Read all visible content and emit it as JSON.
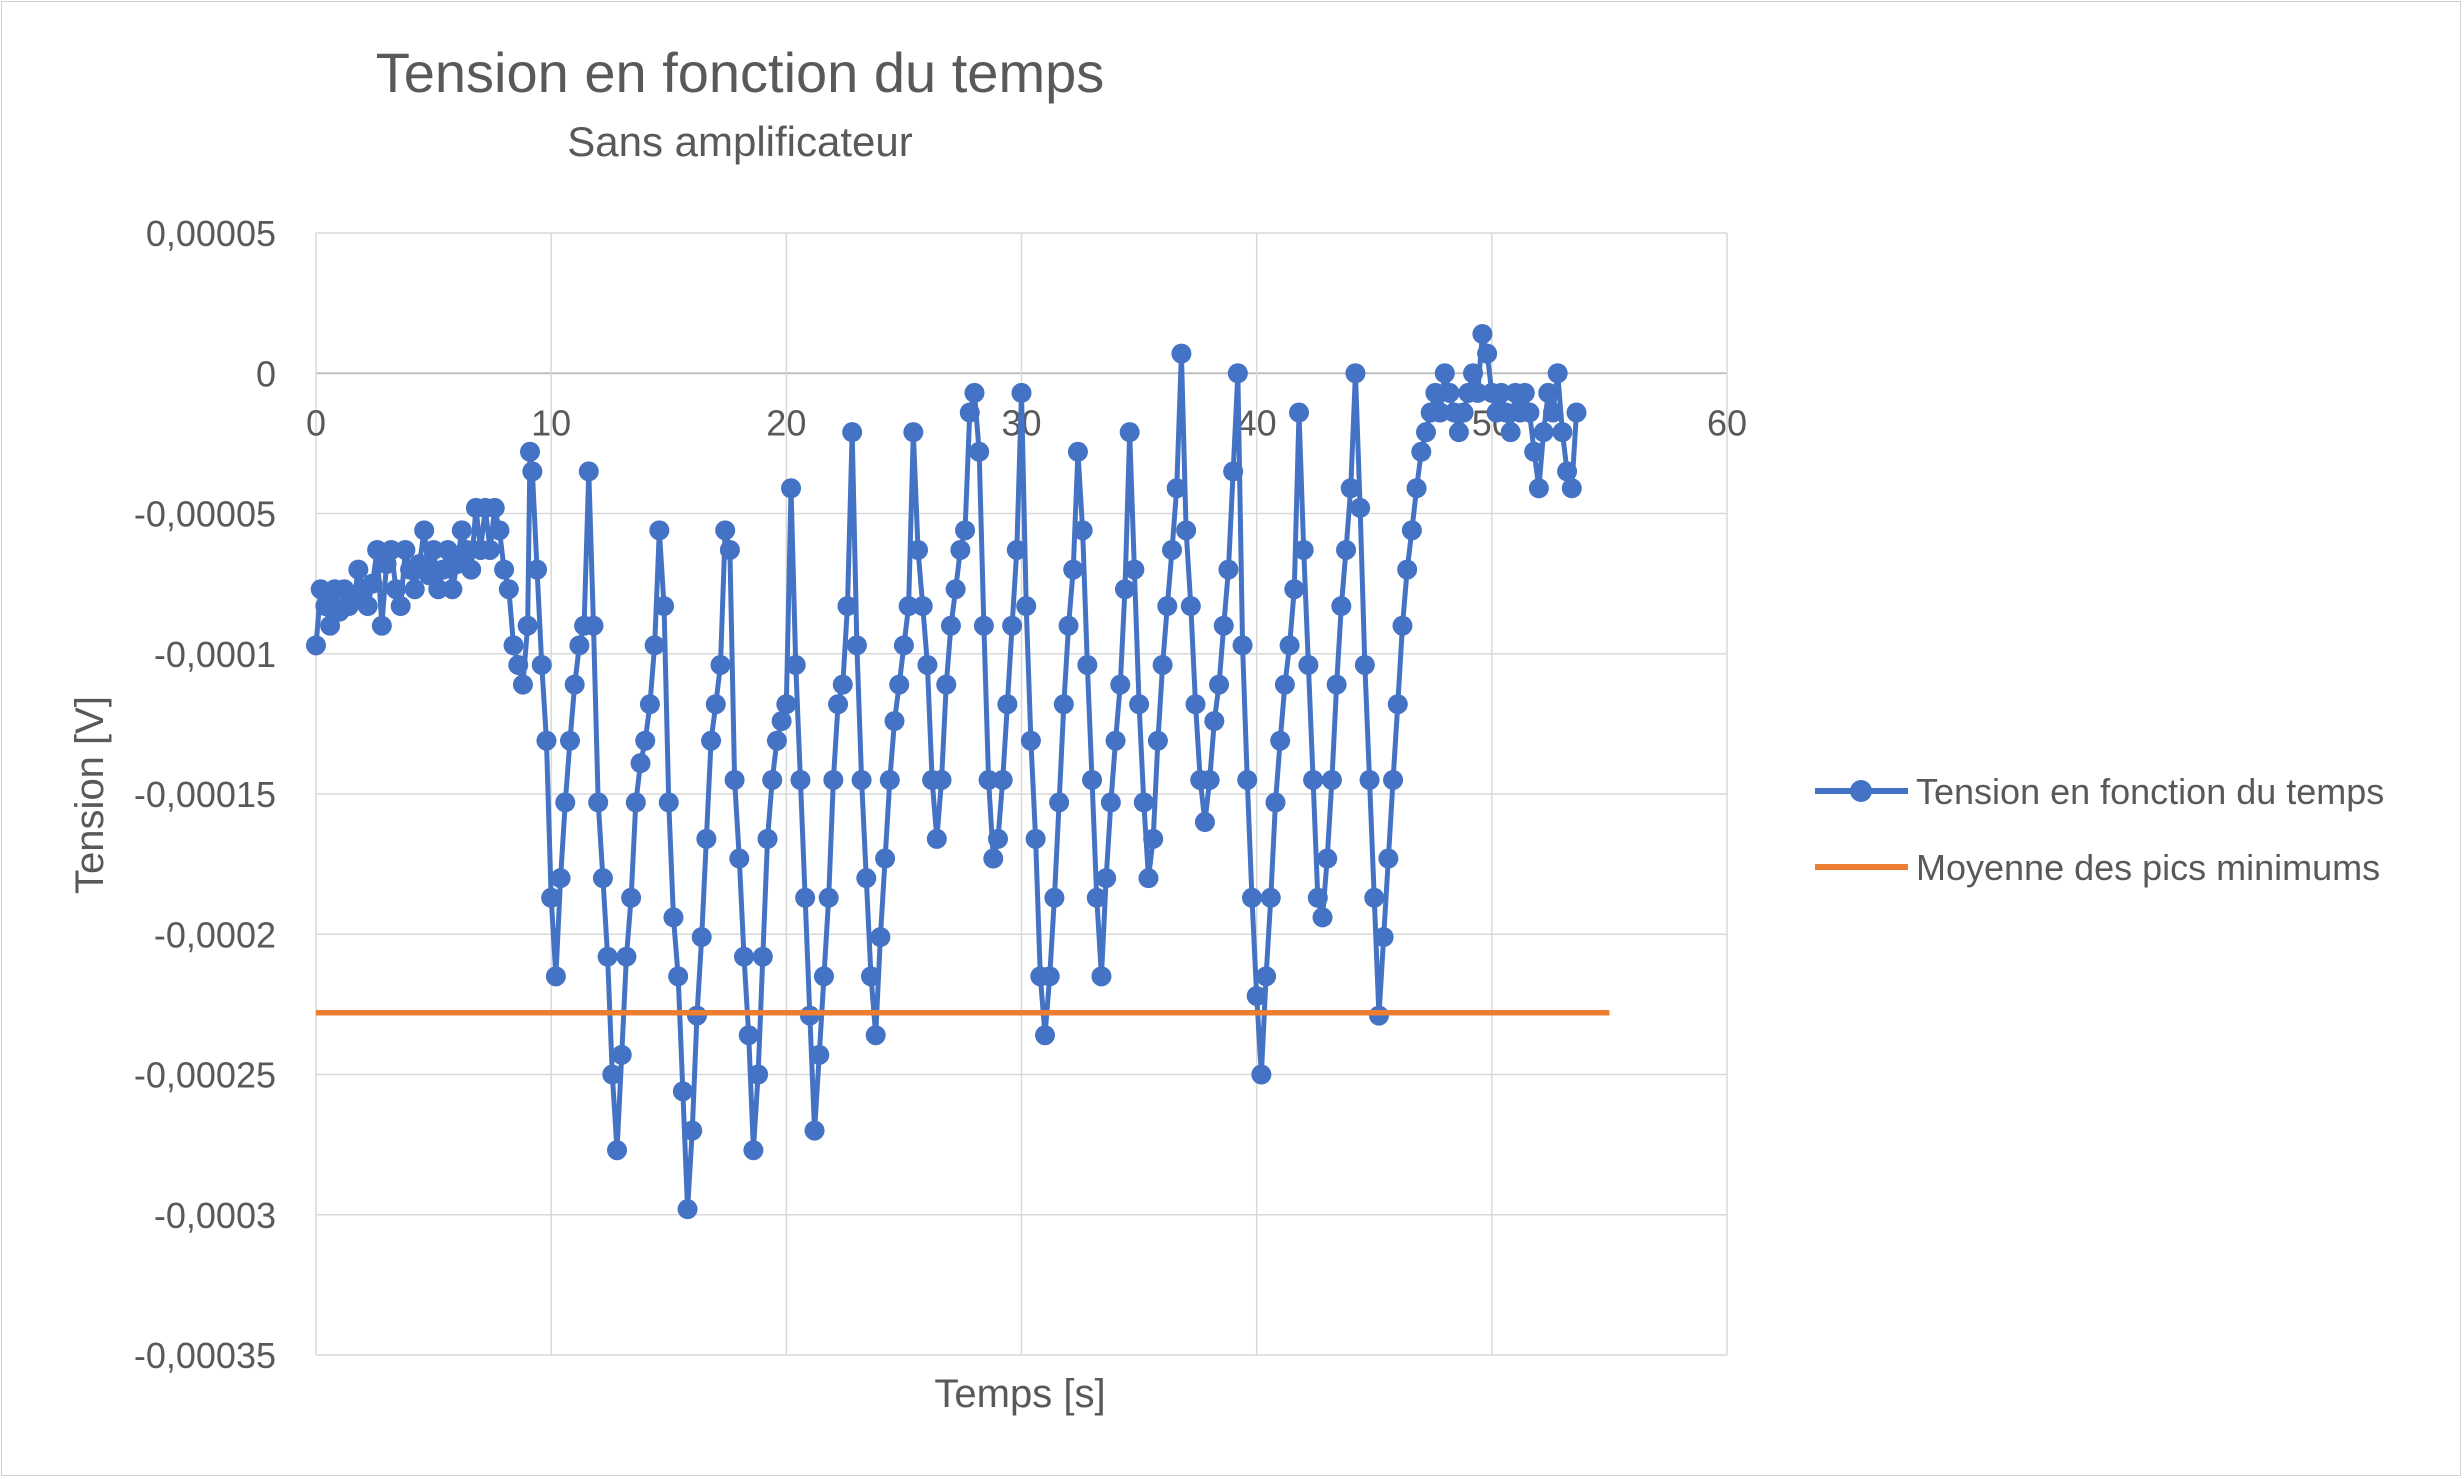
{
  "chart_data": {
    "type": "line",
    "title": "Tension en fonction du temps",
    "subtitle": "Sans amplificateur",
    "xlabel": "Temps [s]",
    "ylabel": "Tension [V]",
    "xlim": [
      0,
      60
    ],
    "ylim": [
      -0.00035,
      5e-05
    ],
    "x_ticks": [
      0,
      10,
      20,
      30,
      40,
      50,
      60
    ],
    "x_tick_labels": [
      "0",
      "10",
      "20",
      "30",
      "40",
      "50",
      "60"
    ],
    "y_ticks": [
      5e-05,
      0,
      -5e-05,
      -0.0001,
      -0.00015,
      -0.0002,
      -0.00025,
      -0.0003,
      -0.00035
    ],
    "y_tick_labels": [
      "0,00005",
      "0",
      "-0,00005",
      "-0,0001",
      "-0,00015",
      "-0,0002",
      "-0,00025",
      "-0,0003",
      "-0,00035"
    ],
    "grid": true,
    "legend_position": "right",
    "series": [
      {
        "name": "Tension en fonction du temps",
        "color": "#4472C4",
        "marker": "circle",
        "points": [
          [
            0,
            -9.7e-05
          ],
          [
            0.2,
            -7.7e-05
          ],
          [
            0.4,
            -8.3e-05
          ],
          [
            0.6,
            -9e-05
          ],
          [
            0.8,
            -7.7e-05
          ],
          [
            1.0,
            -8.5e-05
          ],
          [
            1.2,
            -7.7e-05
          ],
          [
            1.4,
            -8.3e-05
          ],
          [
            1.6,
            -8.1e-05
          ],
          [
            1.8,
            -7e-05
          ],
          [
            2.0,
            -7.7e-05
          ],
          [
            2.2,
            -8.3e-05
          ],
          [
            2.4,
            -7.5e-05
          ],
          [
            2.6,
            -6.3e-05
          ],
          [
            2.8,
            -9e-05
          ],
          [
            3.0,
            -6.8e-05
          ],
          [
            3.2,
            -6.3e-05
          ],
          [
            3.4,
            -7.7e-05
          ],
          [
            3.6,
            -8.3e-05
          ],
          [
            3.8,
            -6.3e-05
          ],
          [
            4.0,
            -7e-05
          ],
          [
            4.2,
            -7.7e-05
          ],
          [
            4.4,
            -6.8e-05
          ],
          [
            4.6,
            -5.6e-05
          ],
          [
            4.8,
            -7.2e-05
          ],
          [
            5.0,
            -6.3e-05
          ],
          [
            5.2,
            -7.7e-05
          ],
          [
            5.4,
            -7e-05
          ],
          [
            5.6,
            -6.3e-05
          ],
          [
            5.8,
            -7.7e-05
          ],
          [
            6.0,
            -6.8e-05
          ],
          [
            6.2,
            -5.6e-05
          ],
          [
            6.4,
            -6.3e-05
          ],
          [
            6.6,
            -7e-05
          ],
          [
            6.8,
            -4.8e-05
          ],
          [
            7.0,
            -6.3e-05
          ],
          [
            7.2,
            -4.8e-05
          ],
          [
            7.4,
            -6.3e-05
          ],
          [
            7.6,
            -4.8e-05
          ],
          [
            7.8,
            -5.6e-05
          ],
          [
            8.0,
            -7e-05
          ],
          [
            8.2,
            -7.7e-05
          ],
          [
            8.4,
            -9.7e-05
          ],
          [
            8.6,
            -0.000104
          ],
          [
            8.8,
            -0.000111
          ],
          [
            9.0,
            -9e-05
          ],
          [
            9.1,
            -2.8e-05
          ],
          [
            9.2,
            -3.5e-05
          ],
          [
            9.4,
            -7e-05
          ],
          [
            9.6,
            -0.000104
          ],
          [
            9.8,
            -0.000131
          ],
          [
            10.0,
            -0.000187
          ],
          [
            10.2,
            -0.000215
          ],
          [
            10.4,
            -0.00018
          ],
          [
            10.6,
            -0.000153
          ],
          [
            10.8,
            -0.000131
          ],
          [
            11.0,
            -0.000111
          ],
          [
            11.2,
            -9.7e-05
          ],
          [
            11.4,
            -9e-05
          ],
          [
            11.6,
            -3.5e-05
          ],
          [
            11.8,
            -9e-05
          ],
          [
            12.0,
            -0.000153
          ],
          [
            12.2,
            -0.00018
          ],
          [
            12.4,
            -0.000208
          ],
          [
            12.6,
            -0.00025
          ],
          [
            12.8,
            -0.000277
          ],
          [
            13.0,
            -0.000243
          ],
          [
            13.2,
            -0.000208
          ],
          [
            13.4,
            -0.000187
          ],
          [
            13.6,
            -0.000153
          ],
          [
            13.8,
            -0.000139
          ],
          [
            14.0,
            -0.000131
          ],
          [
            14.2,
            -0.000118
          ],
          [
            14.4,
            -9.7e-05
          ],
          [
            14.6,
            -5.6e-05
          ],
          [
            14.8,
            -8.3e-05
          ],
          [
            15.0,
            -0.000153
          ],
          [
            15.2,
            -0.000194
          ],
          [
            15.4,
            -0.000215
          ],
          [
            15.6,
            -0.000256
          ],
          [
            15.8,
            -0.000298
          ],
          [
            16.0,
            -0.00027
          ],
          [
            16.2,
            -0.000229
          ],
          [
            16.4,
            -0.000201
          ],
          [
            16.6,
            -0.000166
          ],
          [
            16.8,
            -0.000131
          ],
          [
            17.0,
            -0.000118
          ],
          [
            17.2,
            -0.000104
          ],
          [
            17.4,
            -5.6e-05
          ],
          [
            17.6,
            -6.3e-05
          ],
          [
            17.8,
            -0.000145
          ],
          [
            18.0,
            -0.000173
          ],
          [
            18.2,
            -0.000208
          ],
          [
            18.4,
            -0.000236
          ],
          [
            18.6,
            -0.000277
          ],
          [
            18.8,
            -0.00025
          ],
          [
            19.0,
            -0.000208
          ],
          [
            19.2,
            -0.000166
          ],
          [
            19.4,
            -0.000145
          ],
          [
            19.6,
            -0.000131
          ],
          [
            19.8,
            -0.000124
          ],
          [
            20.0,
            -0.000118
          ],
          [
            20.2,
            -4.1e-05
          ],
          [
            20.4,
            -0.000104
          ],
          [
            20.6,
            -0.000145
          ],
          [
            20.8,
            -0.000187
          ],
          [
            21.0,
            -0.000229
          ],
          [
            21.2,
            -0.00027
          ],
          [
            21.4,
            -0.000243
          ],
          [
            21.6,
            -0.000215
          ],
          [
            21.8,
            -0.000187
          ],
          [
            22.0,
            -0.000145
          ],
          [
            22.2,
            -0.000118
          ],
          [
            22.4,
            -0.000111
          ],
          [
            22.6,
            -8.3e-05
          ],
          [
            22.8,
            -2.1e-05
          ],
          [
            23.0,
            -9.7e-05
          ],
          [
            23.2,
            -0.000145
          ],
          [
            23.4,
            -0.00018
          ],
          [
            23.6,
            -0.000215
          ],
          [
            23.8,
            -0.000236
          ],
          [
            24.0,
            -0.000201
          ],
          [
            24.2,
            -0.000173
          ],
          [
            24.4,
            -0.000145
          ],
          [
            24.6,
            -0.000124
          ],
          [
            24.8,
            -0.000111
          ],
          [
            25.0,
            -9.7e-05
          ],
          [
            25.2,
            -8.3e-05
          ],
          [
            25.4,
            -2.1e-05
          ],
          [
            25.6,
            -6.3e-05
          ],
          [
            25.8,
            -8.3e-05
          ],
          [
            26.0,
            -0.000104
          ],
          [
            26.2,
            -0.000145
          ],
          [
            26.4,
            -0.000166
          ],
          [
            26.6,
            -0.000145
          ],
          [
            26.8,
            -0.000111
          ],
          [
            27.0,
            -9e-05
          ],
          [
            27.2,
            -7.7e-05
          ],
          [
            27.4,
            -6.3e-05
          ],
          [
            27.6,
            -5.6e-05
          ],
          [
            27.8,
            -1.4e-05
          ],
          [
            28.0,
            -7e-06
          ],
          [
            28.2,
            -2.8e-05
          ],
          [
            28.4,
            -9e-05
          ],
          [
            28.6,
            -0.000145
          ],
          [
            28.8,
            -0.000173
          ],
          [
            29.0,
            -0.000166
          ],
          [
            29.2,
            -0.000145
          ],
          [
            29.4,
            -0.000118
          ],
          [
            29.6,
            -9e-05
          ],
          [
            29.8,
            -6.3e-05
          ],
          [
            30.0,
            -7e-06
          ],
          [
            30.2,
            -8.3e-05
          ],
          [
            30.4,
            -0.000131
          ],
          [
            30.6,
            -0.000166
          ],
          [
            30.8,
            -0.000215
          ],
          [
            31.0,
            -0.000236
          ],
          [
            31.2,
            -0.000215
          ],
          [
            31.4,
            -0.000187
          ],
          [
            31.6,
            -0.000153
          ],
          [
            31.8,
            -0.000118
          ],
          [
            32.0,
            -9e-05
          ],
          [
            32.2,
            -7e-05
          ],
          [
            32.4,
            -2.8e-05
          ],
          [
            32.6,
            -5.6e-05
          ],
          [
            32.8,
            -0.000104
          ],
          [
            33.0,
            -0.000145
          ],
          [
            33.2,
            -0.000187
          ],
          [
            33.4,
            -0.000215
          ],
          [
            33.6,
            -0.00018
          ],
          [
            33.8,
            -0.000153
          ],
          [
            34.0,
            -0.000131
          ],
          [
            34.2,
            -0.000111
          ],
          [
            34.4,
            -7.7e-05
          ],
          [
            34.6,
            -2.1e-05
          ],
          [
            34.8,
            -7e-05
          ],
          [
            35.0,
            -0.000118
          ],
          [
            35.2,
            -0.000153
          ],
          [
            35.4,
            -0.00018
          ],
          [
            35.6,
            -0.000166
          ],
          [
            35.8,
            -0.000131
          ],
          [
            36.0,
            -0.000104
          ],
          [
            36.2,
            -8.3e-05
          ],
          [
            36.4,
            -6.3e-05
          ],
          [
            36.6,
            -4.1e-05
          ],
          [
            36.8,
            7e-06
          ],
          [
            37.0,
            -5.6e-05
          ],
          [
            37.2,
            -8.3e-05
          ],
          [
            37.4,
            -0.000118
          ],
          [
            37.6,
            -0.000145
          ],
          [
            37.8,
            -0.00016
          ],
          [
            38.0,
            -0.000145
          ],
          [
            38.2,
            -0.000124
          ],
          [
            38.4,
            -0.000111
          ],
          [
            38.6,
            -9e-05
          ],
          [
            38.8,
            -7e-05
          ],
          [
            39.0,
            -3.5e-05
          ],
          [
            39.2,
            0
          ],
          [
            39.4,
            -9.7e-05
          ],
          [
            39.6,
            -0.000145
          ],
          [
            39.8,
            -0.000187
          ],
          [
            40.0,
            -0.000222
          ],
          [
            40.2,
            -0.00025
          ],
          [
            40.4,
            -0.000215
          ],
          [
            40.6,
            -0.000187
          ],
          [
            40.8,
            -0.000153
          ],
          [
            41.0,
            -0.000131
          ],
          [
            41.2,
            -0.000111
          ],
          [
            41.4,
            -9.7e-05
          ],
          [
            41.6,
            -7.7e-05
          ],
          [
            41.8,
            -1.4e-05
          ],
          [
            42.0,
            -6.3e-05
          ],
          [
            42.2,
            -0.000104
          ],
          [
            42.4,
            -0.000145
          ],
          [
            42.6,
            -0.000187
          ],
          [
            42.8,
            -0.000194
          ],
          [
            43.0,
            -0.000173
          ],
          [
            43.2,
            -0.000145
          ],
          [
            43.4,
            -0.000111
          ],
          [
            43.6,
            -8.3e-05
          ],
          [
            43.8,
            -6.3e-05
          ],
          [
            44.0,
            -4.1e-05
          ],
          [
            44.2,
            0
          ],
          [
            44.4,
            -4.8e-05
          ],
          [
            44.6,
            -0.000104
          ],
          [
            44.8,
            -0.000145
          ],
          [
            45.0,
            -0.000187
          ],
          [
            45.2,
            -0.000229
          ],
          [
            45.4,
            -0.000201
          ],
          [
            45.6,
            -0.000173
          ],
          [
            45.8,
            -0.000145
          ],
          [
            46.0,
            -0.000118
          ],
          [
            46.2,
            -9e-05
          ],
          [
            46.4,
            -7e-05
          ],
          [
            46.6,
            -5.6e-05
          ],
          [
            46.8,
            -4.1e-05
          ],
          [
            47.0,
            -2.8e-05
          ],
          [
            47.2,
            -2.1e-05
          ],
          [
            47.4,
            -1.4e-05
          ],
          [
            47.6,
            -7e-06
          ],
          [
            47.8,
            -1.4e-05
          ],
          [
            48.0,
            0
          ],
          [
            48.2,
            -7e-06
          ],
          [
            48.4,
            -1.4e-05
          ],
          [
            48.6,
            -2.1e-05
          ],
          [
            48.8,
            -1.4e-05
          ],
          [
            49.0,
            -7e-06
          ],
          [
            49.2,
            0
          ],
          [
            49.4,
            -7e-06
          ],
          [
            49.6,
            1.4e-05
          ],
          [
            49.8,
            7e-06
          ],
          [
            50.0,
            -7e-06
          ],
          [
            50.2,
            -1.4e-05
          ],
          [
            50.4,
            -7e-06
          ],
          [
            50.6,
            -1.4e-05
          ],
          [
            50.8,
            -2.1e-05
          ],
          [
            51.0,
            -7e-06
          ],
          [
            51.2,
            -1.4e-05
          ],
          [
            51.4,
            -7e-06
          ],
          [
            51.6,
            -1.4e-05
          ],
          [
            51.8,
            -2.8e-05
          ],
          [
            52.0,
            -4.1e-05
          ],
          [
            52.2,
            -2.1e-05
          ],
          [
            52.4,
            -7e-06
          ],
          [
            52.6,
            -1.4e-05
          ],
          [
            52.8,
            0
          ],
          [
            53.0,
            -2.1e-05
          ],
          [
            53.2,
            -3.5e-05
          ],
          [
            53.4,
            -4.1e-05
          ],
          [
            53.6,
            -1.4e-05
          ]
        ]
      },
      {
        "name": "Moyenne des pics minimums",
        "color": "#ED7D31",
        "marker": "none",
        "points": [
          [
            0,
            -0.000228
          ],
          [
            55,
            -0.000228
          ]
        ]
      }
    ]
  }
}
